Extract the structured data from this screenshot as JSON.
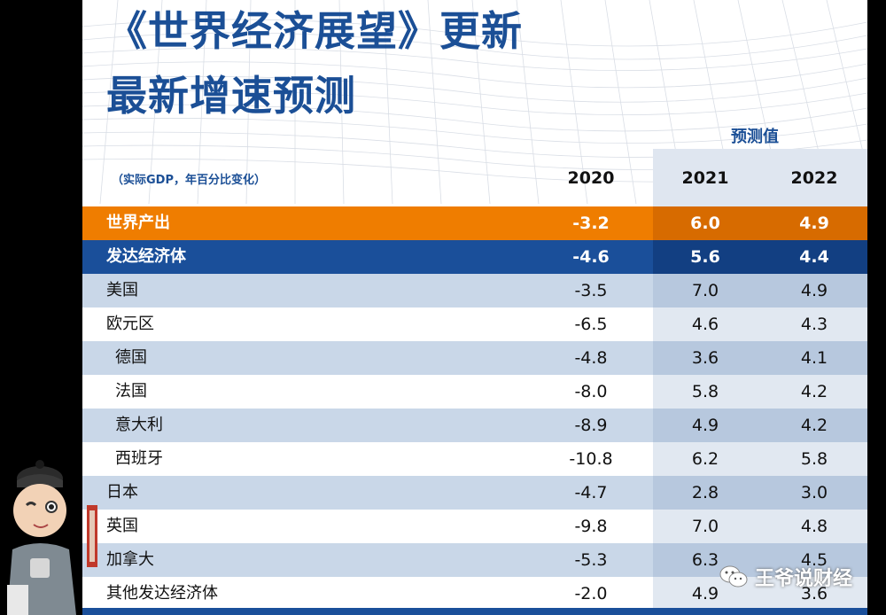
{
  "title_line1": "《世界经济展望》更新",
  "title_line2": "最新增速预测",
  "subtitle": "（实际GDP，年百分比变化）",
  "forecast_label": "预测值",
  "years": [
    "2020",
    "2021",
    "2022"
  ],
  "rows": [
    {
      "label": "世界产出",
      "v2020": "-3.2",
      "v2021": "6.0",
      "v2022": "4.9"
    },
    {
      "label": "发达经济体",
      "v2020": "-4.6",
      "v2021": "5.6",
      "v2022": "4.4"
    },
    {
      "label": "美国",
      "v2020": "-3.5",
      "v2021": "7.0",
      "v2022": "4.9"
    },
    {
      "label": "欧元区",
      "v2020": "-6.5",
      "v2021": "4.6",
      "v2022": "4.3"
    },
    {
      "label": "德国",
      "v2020": "-4.8",
      "v2021": "3.6",
      "v2022": "4.1"
    },
    {
      "label": "法国",
      "v2020": "-8.0",
      "v2021": "5.8",
      "v2022": "4.2"
    },
    {
      "label": "意大利",
      "v2020": "-8.9",
      "v2021": "4.9",
      "v2022": "4.2"
    },
    {
      "label": "西班牙",
      "v2020": "-10.8",
      "v2021": "6.2",
      "v2022": "5.8"
    },
    {
      "label": "日本",
      "v2020": "-4.7",
      "v2021": "2.8",
      "v2022": "3.0"
    },
    {
      "label": "英国",
      "v2020": "-9.8",
      "v2021": "7.0",
      "v2022": "4.8"
    },
    {
      "label": "加拿大",
      "v2020": "-5.3",
      "v2021": "6.3",
      "v2022": "4.5"
    },
    {
      "label": "其他发达经济体",
      "v2020": "-2.0",
      "v2021": "4.9",
      "v2022": "3.6"
    }
  ],
  "watermark_text": "王爷说财经",
  "mascot_seal_text": "王爷说财经",
  "colors": {
    "brand_blue": "#1b4f96",
    "world_orange": "#ef7d00",
    "advanced_blue": "#1a4f9a"
  }
}
